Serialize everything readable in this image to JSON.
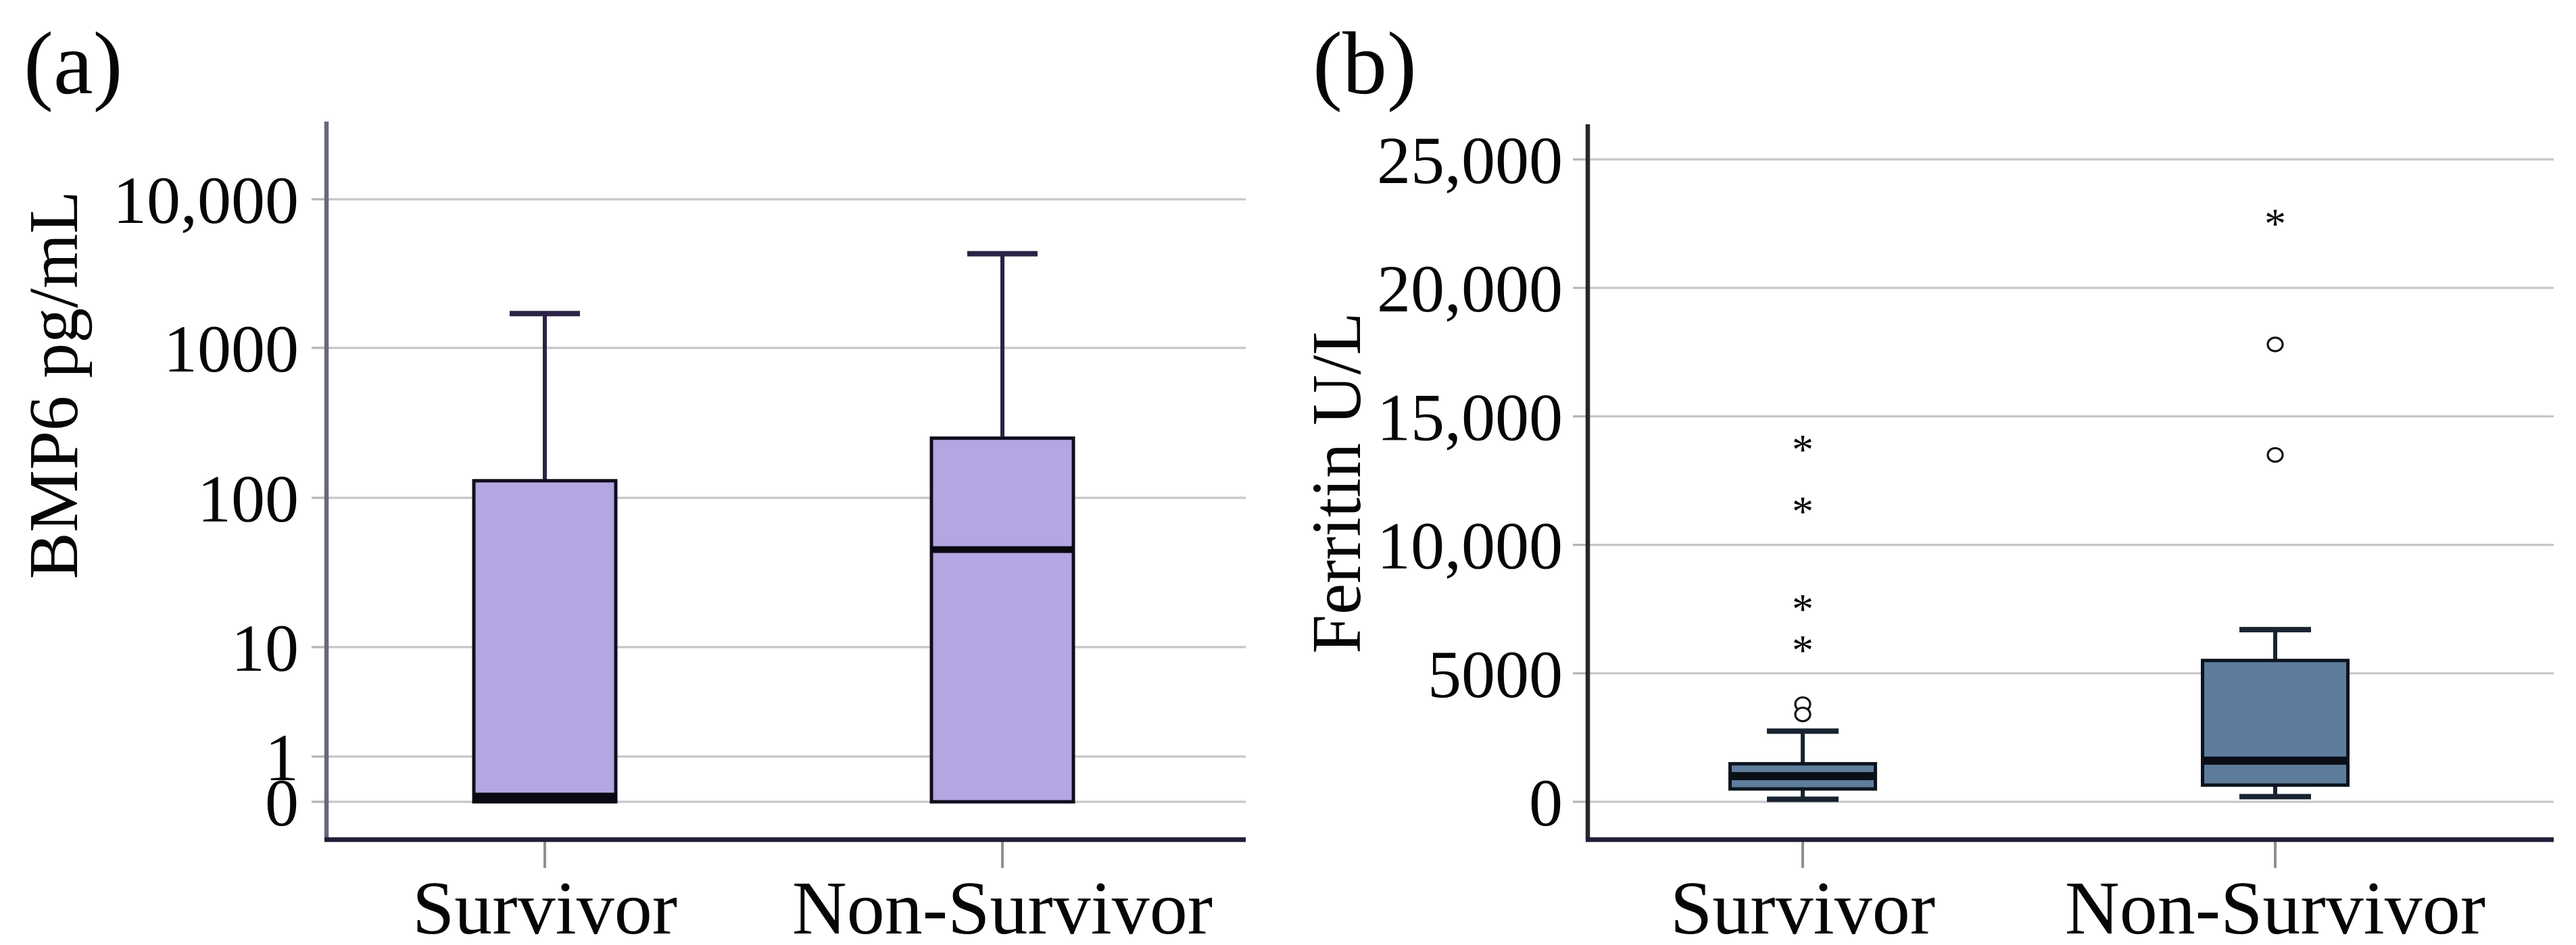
{
  "figure": {
    "background": "#ffffff",
    "text_color": "#060606",
    "gridline_color": "#c6c6c6",
    "bottom_spine_color": "#241c38",
    "outlier_marker_color": "#141414"
  },
  "chart_data": [
    {
      "type": "box",
      "panel_label": "(a)",
      "ylabel": "BMP6 pg/mL",
      "categories": [
        "Survivor",
        "Non-Survivor"
      ],
      "y_axis": {
        "scale": "log-with-zero",
        "tick_labels": [
          "10,000",
          "1000",
          "100",
          "10",
          "1",
          "0"
        ],
        "tick_values": [
          10000,
          1000,
          100,
          10,
          1,
          0
        ],
        "range": [
          0,
          10000
        ]
      },
      "grid": true,
      "legend": false,
      "colors": {
        "box_fill": "#b4a6e2",
        "box_border": "#110d1d",
        "whisker": "#2c2347",
        "median": "#0a0812",
        "left_spine": "#6e657d"
      },
      "series": [
        {
          "category": "Survivor",
          "whisker_min": 0,
          "q1": 0,
          "median": 0,
          "q3": 130,
          "whisker_max": 1700,
          "outliers": []
        },
        {
          "category": "Non-Survivor",
          "whisker_min": 0,
          "q1": 0,
          "median": 45,
          "q3": 250,
          "whisker_max": 4300,
          "outliers": []
        }
      ]
    },
    {
      "type": "box",
      "panel_label": "(b)",
      "ylabel": "Ferritin U/L",
      "categories": [
        "Survivor",
        "Non-Survivor"
      ],
      "y_axis": {
        "scale": "linear",
        "tick_labels": [
          "25,000",
          "20,000",
          "15,000",
          "10,000",
          "5000",
          "0"
        ],
        "tick_values": [
          25000,
          20000,
          15000,
          10000,
          5000,
          0
        ],
        "range": [
          0,
          25000
        ]
      },
      "grid": true,
      "legend": false,
      "colors": {
        "box_fill": "#5e7d9c",
        "box_border": "#0c131e",
        "whisker": "#1a2330",
        "median": "#0a0f16",
        "left_spine": "#26262e"
      },
      "series": [
        {
          "category": "Survivor",
          "whisker_min": 100,
          "q1": 500,
          "median": 1000,
          "q3": 1480,
          "whisker_max": 2750,
          "outliers": [
            {
              "value": 13900,
              "marker": "asterisk"
            },
            {
              "value": 11500,
              "marker": "asterisk"
            },
            {
              "value": 7700,
              "marker": "asterisk"
            },
            {
              "value": 6100,
              "marker": "asterisk"
            },
            {
              "value": 3800,
              "marker": "circle"
            },
            {
              "value": 3400,
              "marker": "circle"
            }
          ]
        },
        {
          "category": "Non-Survivor",
          "whisker_min": 200,
          "q1": 650,
          "median": 1600,
          "q3": 5500,
          "whisker_max": 6700,
          "outliers": [
            {
              "value": 22700,
              "marker": "asterisk"
            },
            {
              "value": 17800,
              "marker": "circle"
            },
            {
              "value": 13500,
              "marker": "circle"
            }
          ]
        }
      ]
    }
  ]
}
